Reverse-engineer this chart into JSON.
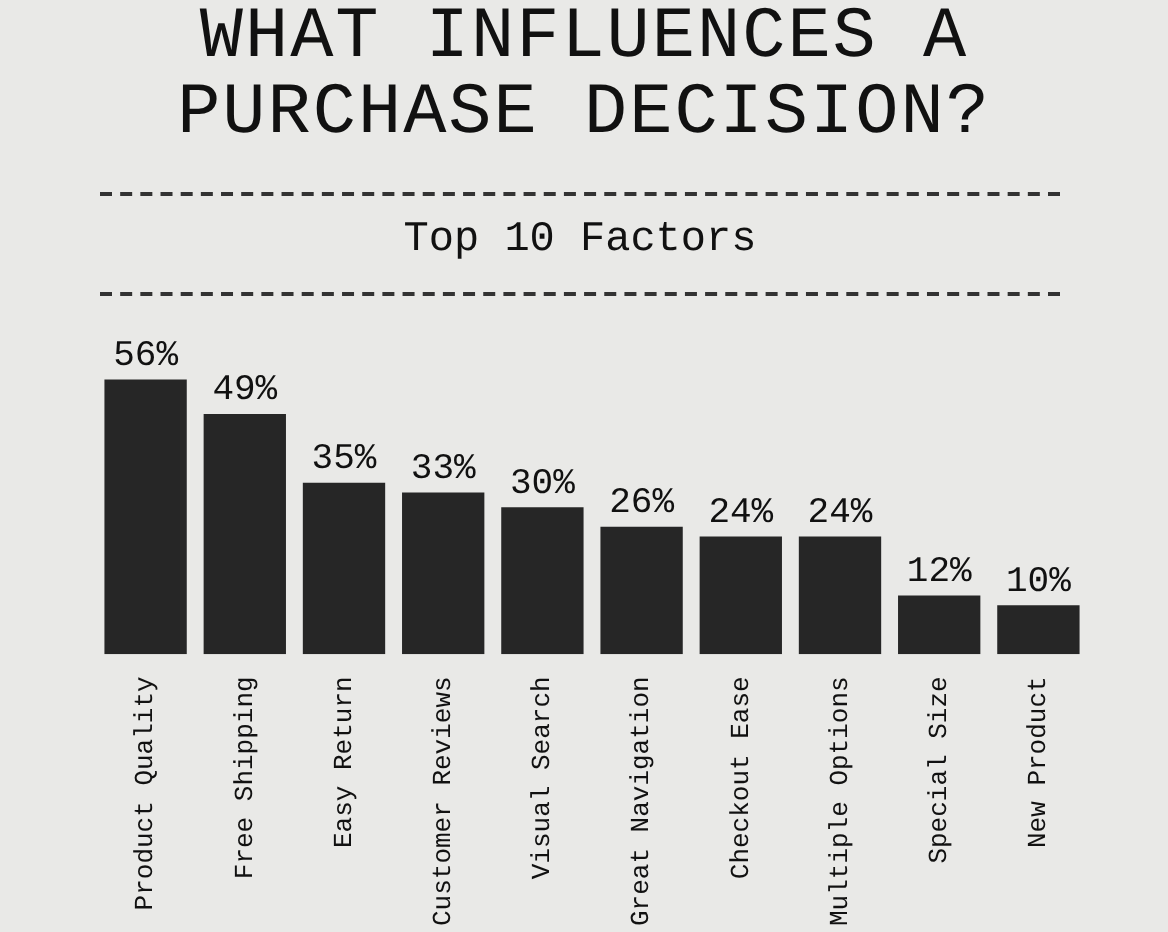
{
  "chart_data": {
    "type": "bar",
    "title": "WHAT INFLUENCES A PURCHASE DECISION?",
    "subtitle": "Top 10 Factors",
    "categories": [
      "Product Quality",
      "Free Shipping",
      "Easy Return",
      "Customer Reviews",
      "Visual Search",
      "Great Navigation",
      "Checkout Ease",
      "Multiple Options",
      "Special Size",
      "New Product"
    ],
    "values": [
      56,
      49,
      35,
      33,
      30,
      26,
      24,
      24,
      12,
      10
    ],
    "value_labels": [
      "56%",
      "49%",
      "35%",
      "33%",
      "30%",
      "26%",
      "24%",
      "24%",
      "12%",
      "10%"
    ],
    "color": "#262626",
    "legend": false
  }
}
